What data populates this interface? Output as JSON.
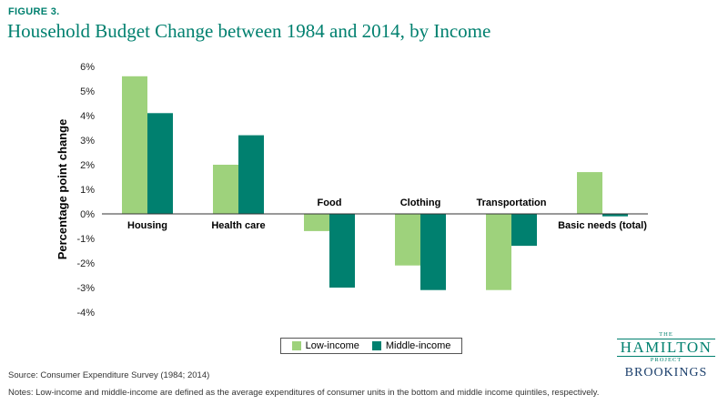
{
  "figure_label": "FIGURE 3.",
  "title": "Household Budget Change between 1984 and 2014, by Income",
  "source": "Source: Consumer Expenditure Survey (1984; 2014)",
  "notes": "Notes: Low-income and middle-income are defined as the average expenditures of consumer units in the bottom and middle income quintiles, respectively.",
  "logo": {
    "the": "THE",
    "hamilton": "HAMILTON",
    "project": "PROJECT",
    "brookings": "BROOKINGS"
  },
  "legend": [
    "Low-income",
    "Middle-income"
  ],
  "chart_data": {
    "type": "bar",
    "title": "Household Budget Change between 1984 and 2014, by Income",
    "ylabel": "Percentage point change",
    "xlabel": "",
    "categories": [
      "Housing",
      "Health care",
      "Food",
      "Clothing",
      "Transportation",
      "Basic needs (total)"
    ],
    "series": [
      {
        "name": "Low-income",
        "color": "#9ed27c",
        "values": [
          5.6,
          2.0,
          -0.7,
          -2.1,
          -3.1,
          1.7
        ]
      },
      {
        "name": "Middle-income",
        "color": "#00806f",
        "values": [
          4.1,
          3.2,
          -3.0,
          -3.1,
          -1.3,
          -0.1
        ]
      }
    ],
    "ylim": [
      -4,
      6
    ],
    "yticks": [
      "6%",
      "5%",
      "4%",
      "3%",
      "2%",
      "1%",
      "0%",
      "-1%",
      "-2%",
      "-3%",
      "-4%"
    ],
    "grid": false,
    "legend_position": "bottom-center"
  }
}
